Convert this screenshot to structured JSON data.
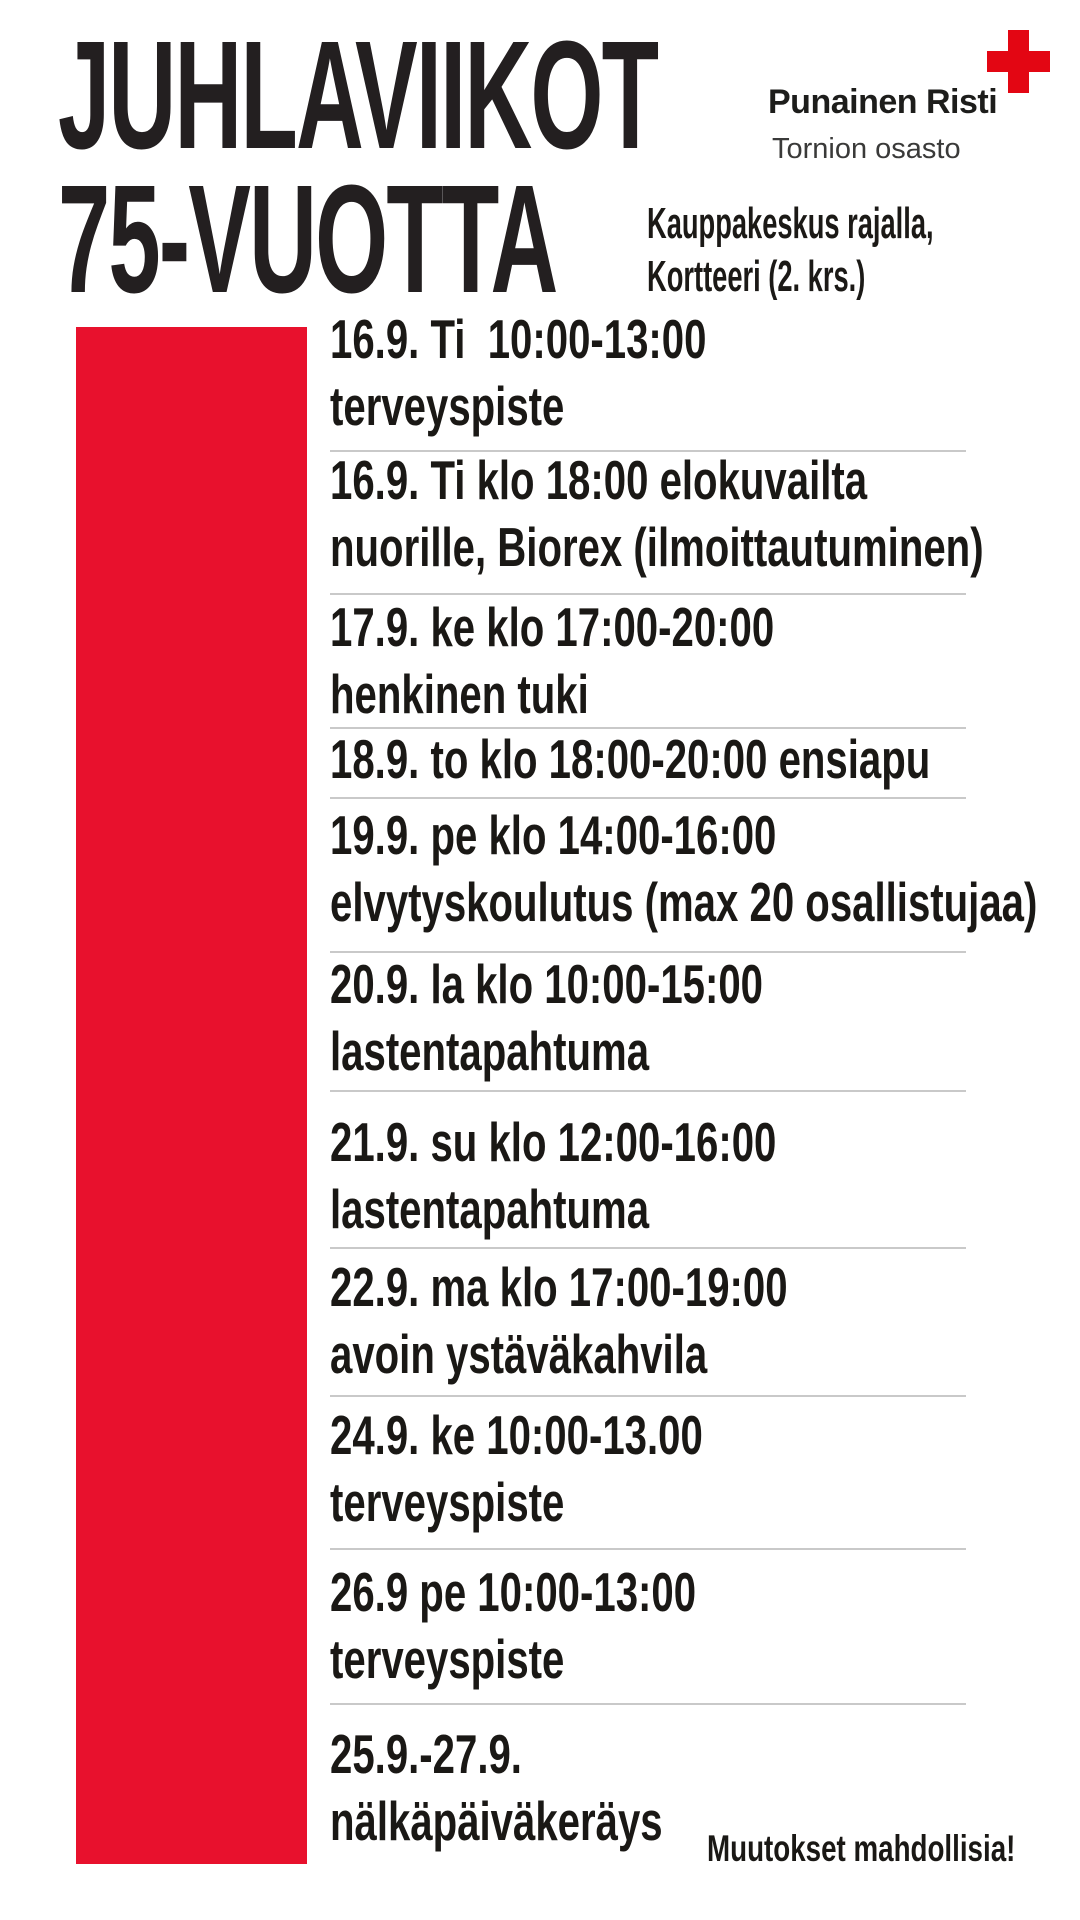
{
  "poster": {
    "title_line1": "JUHLAVIIKOT",
    "title_line2": "75-VUOTTA",
    "logo": {
      "org": "Punainen Risti",
      "chapter": "Tornion osasto",
      "cross_color": "#e30613"
    },
    "venue_line1": "Kauppakeskus rajalla,",
    "venue_line2": "Kortteeri (2. krs.)",
    "footer_note": "Muutokset mahdollisia!",
    "accent_red": "#e8112d",
    "divider_color": "#c9c9c9",
    "text_color": "#1a1815"
  },
  "schedule": {
    "rows": [
      {
        "line1": "16.9. Ti  10:00-13:00",
        "line2": "terveyspiste"
      },
      {
        "line1": "16.9. Ti klo 18:00 elokuvailta",
        "line2": "nuorille, Biorex (ilmoittautuminen)"
      },
      {
        "line1": "17.9. ke klo 17:00-20:00",
        "line2": "henkinen tuki"
      },
      {
        "line1": "18.9. to klo 18:00-20:00 ensiapu",
        "line2": ""
      },
      {
        "line1": "19.9. pe klo 14:00-16:00",
        "line2": "elvytyskoulutus (max 20 osallistujaa)"
      },
      {
        "line1": "20.9. la klo 10:00-15:00",
        "line2": "lastentapahtuma"
      },
      {
        "line1": "21.9. su klo 12:00-16:00",
        "line2": "lastentapahtuma"
      },
      {
        "line1": "22.9. ma klo 17:00-19:00",
        "line2": "avoin ystäväkahvila"
      },
      {
        "line1": "24.9. ke 10:00-13.00",
        "line2": "terveyspiste"
      },
      {
        "line1": "26.9 pe 10:00-13:00",
        "line2": "terveyspiste"
      },
      {
        "line1": "25.9.-27.9.",
        "line2": "nälkäpäiväkeräys"
      }
    ]
  }
}
